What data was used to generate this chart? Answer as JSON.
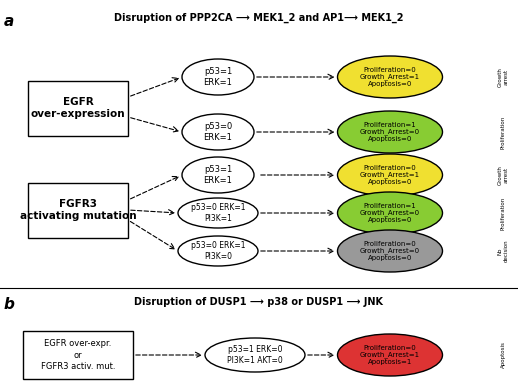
{
  "title_a": "Disruption of PPP2CA ⟶ MEK1_2 and AP1⟶ MEK1_2",
  "title_b": "Disruption of DUSP1 ⟶ p38 or DUSP1 ⟶ JNK",
  "label_a": "a",
  "label_b": "b",
  "egfr_text": "EGFR\nover-expression",
  "fgfr3_text": "FGFR3\nactivating mutation",
  "egfr_b_text": "EGFR over-expr.\nor\nFGFR3 activ. mut.",
  "node_texts": [
    "p53=1\nERK=1",
    "p53=0\nERK=1",
    "p53=1\nERK=1",
    "p53=0 ERK=1\nPI3K=1",
    "p53=0 ERK=1\nPI3K=0"
  ],
  "node_b_text": "p53=1 ERK=0\nPI3K=1 AKT=0",
  "outcome_texts": [
    "Proliferation=0\nGrowth_Arrest=1\nApoptosis=0",
    "Proliferation=1\nGrowth_Arrest=0\nApoptosis=0",
    "Proliferation=0\nGrowth_Arrest=1\nApoptosis=0",
    "Proliferation=1\nGrowth_Arrest=0\nApoptosis=0",
    "Proliferation=0\nGrowth_Arrest=0\nApoptosis=0"
  ],
  "outcome_b_text": "Proliferation=0\nGrowth_Arrest=1\nApoptosis=1",
  "outcome_colors": [
    "#f0e030",
    "#88cc33",
    "#f0e030",
    "#88cc33",
    "#999999"
  ],
  "outcome_b_color": "#dd3333",
  "side_labels_a": [
    "Growth\narrest",
    "Proliferation",
    "Growth\narrest",
    "Proliferation",
    "No\ndecision"
  ],
  "side_label_b": "Apoptosis"
}
